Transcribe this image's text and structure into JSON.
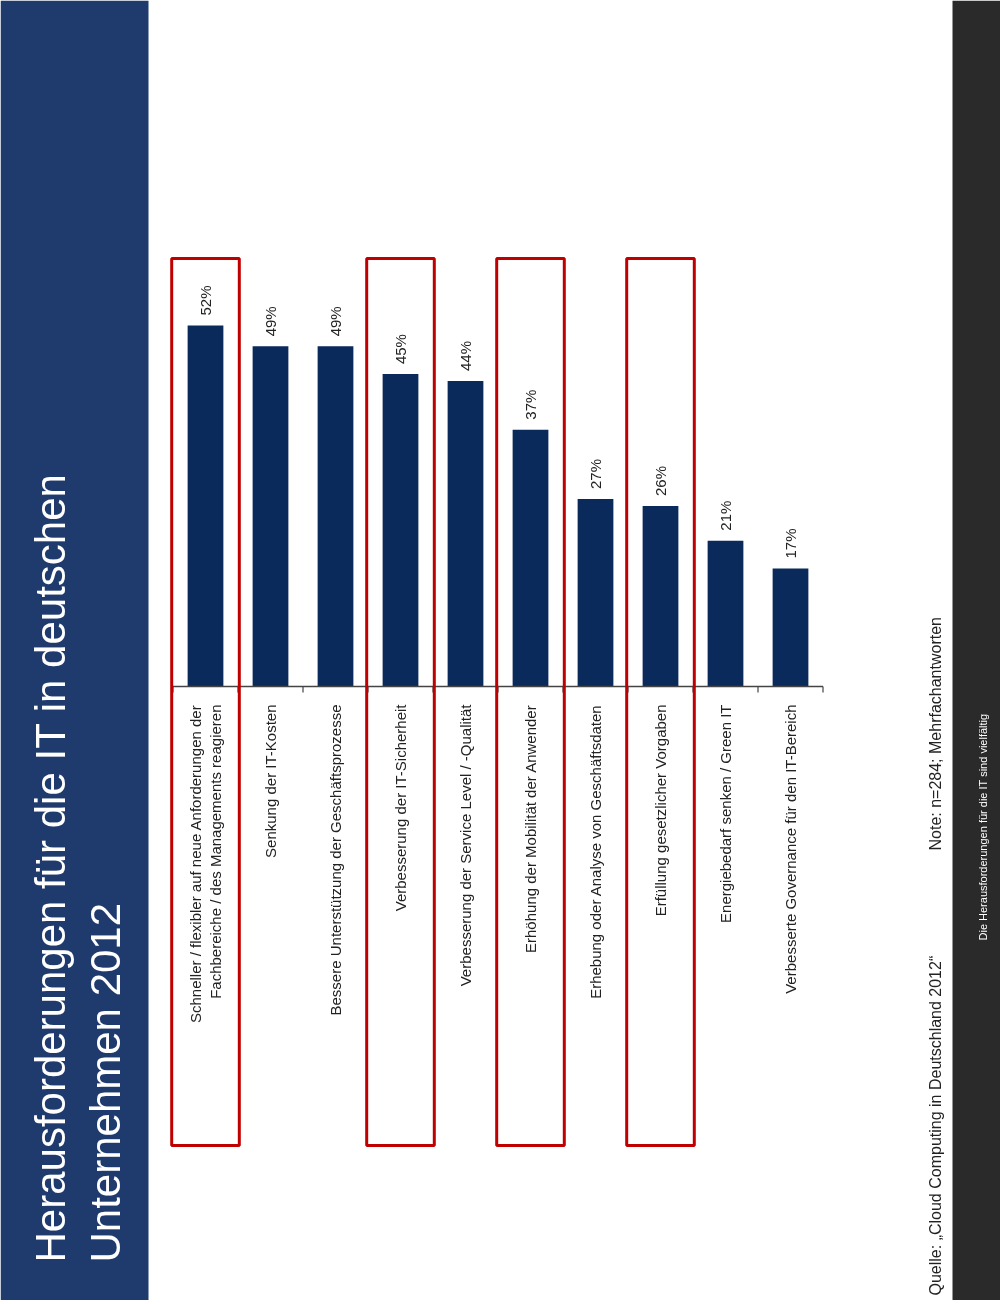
{
  "chart_data": {
    "type": "bar",
    "title": "Herausforderungen für die IT in deutschen Unternehmen 2012",
    "categories": [
      "Schneller / flexibler auf neue Anforderungen der Fachbereiche / des Managements reagieren",
      "Senkung der IT-Kosten",
      "Bessere Unterstützung der Geschäftsprozesse",
      "Verbesserung der IT-Sicherheit",
      "Verbesserung der Service Level / -Qualität",
      "Erhöhung der Mobilität der Anwender",
      "Erhebung oder Analyse von Geschäftsdaten",
      "Erfüllung gesetzlicher Vorgaben",
      "Energiebedarf senken / Green IT",
      "Verbesserte Governance für den IT-Bereich"
    ],
    "values": [
      52,
      49,
      49,
      45,
      44,
      37,
      27,
      26,
      21,
      17
    ],
    "value_labels": [
      "52%",
      "49%",
      "49%",
      "45%",
      "44%",
      "37%",
      "27%",
      "26%",
      "21%",
      "17%"
    ],
    "color": "#0b2a5c",
    "annotations": [
      "Note: n=284; Mehrfachantworten",
      "Quelle: „Cloud Computing in Deutschland 2012“",
      "Die Herausforderungen für die IT sind vielfältig"
    ]
  }
}
